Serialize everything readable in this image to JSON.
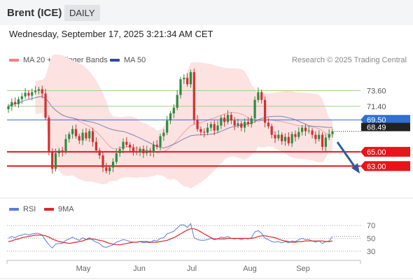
{
  "header": {
    "title": "Brent (ICE)",
    "timeframe": "DAILY"
  },
  "date_label": "Wednesday, September 17, 2025 3:21:34 AM CET",
  "legend": {
    "bollinger": "MA 20 + Bollinger Bands",
    "ma50": "MA 50",
    "credit": "Research © 2025 Trading Central",
    "rsi": "RSI",
    "rsi_ma": "9MA"
  },
  "colors": {
    "bollinger": "#f08080",
    "ma50": "#2e4e8f",
    "up_candle": "#2e8b3e",
    "down_candle": "#d32f2f",
    "resistance": "#9fd08a",
    "pivot": "#2f6fd6",
    "support": "#e8141a",
    "rsi": "#5a7fd6",
    "rsi_ma": "#e0252a"
  },
  "chart_data": [
    {
      "type": "candlestick",
      "title": "Brent (ICE)",
      "x_ticks": [
        "May",
        "Jun",
        "Jul",
        "Aug",
        "Sep"
      ],
      "ylim": [
        58.5,
        76.8
      ],
      "price_tag": "68.49",
      "levels": [
        {
          "label": "73.60",
          "value": 73.6,
          "kind": "resistance"
        },
        {
          "label": "71.40",
          "value": 71.4,
          "kind": "resistance"
        },
        {
          "label": "69.50",
          "value": 69.5,
          "kind": "pivot"
        },
        {
          "label": "65.00",
          "value": 65.0,
          "kind": "support"
        },
        {
          "label": "63.00",
          "value": 63.0,
          "kind": "support"
        }
      ],
      "closes": [
        71.4,
        72.0,
        71.7,
        72.4,
        72.8,
        73.3,
        72.9,
        73.4,
        73.6,
        73.8,
        73.2,
        69.8,
        65.0,
        62.6,
        64.8,
        65.2,
        65.0,
        66.8,
        67.5,
        68.2,
        67.2,
        66.6,
        67.7,
        66.9,
        67.9,
        66.4,
        65.2,
        64.5,
        62.8,
        62.3,
        62.8,
        63.6,
        64.8,
        65.4,
        66.4,
        66.0,
        65.6,
        65.1,
        64.9,
        65.4,
        64.8,
        65.2,
        64.9,
        66.0,
        65.7,
        67.2,
        67.7,
        69.4,
        70.4,
        71.2,
        73.0,
        75.2,
        75.4,
        74.5,
        76.2,
        69.5,
        68.2,
        67.8,
        67.7,
        68.4,
        68.9,
        68.0,
        68.7,
        69.8,
        69.2,
        70.2,
        69.4,
        68.7,
        69.0,
        68.4,
        69.2,
        68.9,
        69.7,
        72.3,
        73.4,
        72.3,
        69.1,
        68.6,
        67.4,
        66.9,
        67.4,
        66.5,
        67.1,
        66.2,
        67.5,
        67.1,
        67.8,
        68.4,
        67.9,
        68.0,
        67.4,
        66.8,
        67.4,
        65.7,
        67.0,
        67.5,
        67.9
      ],
      "rsi": {
        "ylim": [
          20,
          80
        ],
        "ticks": [
          70,
          50,
          30
        ],
        "values": [
          50,
          53,
          51,
          54,
          55,
          57,
          55,
          57,
          58,
          58,
          55,
          47,
          40,
          35,
          41,
          42,
          42,
          47,
          49,
          52,
          49,
          47,
          51,
          48,
          51,
          47,
          44,
          42,
          37,
          36,
          38,
          40,
          44,
          46,
          48,
          47,
          45,
          44,
          44,
          45,
          43,
          44,
          43,
          47,
          46,
          50,
          51,
          57,
          59,
          61,
          66,
          71,
          71,
          67,
          73,
          51,
          48,
          47,
          47,
          48,
          50,
          48,
          49,
          52,
          51,
          53,
          50,
          49,
          50,
          48,
          50,
          49,
          51,
          60,
          62,
          58,
          50,
          48,
          45,
          44,
          45,
          43,
          45,
          43,
          46,
          45,
          48,
          50,
          48,
          48,
          46,
          44,
          46,
          42,
          45,
          46,
          53
        ],
        "ma9": [
          45,
          46,
          48,
          49,
          51,
          52,
          53,
          54,
          55,
          55,
          55,
          54,
          52,
          49,
          47,
          45,
          44,
          43,
          42,
          43,
          44,
          45,
          46,
          48,
          49,
          49,
          48,
          47,
          46,
          44,
          42,
          41,
          40,
          40,
          41,
          42,
          43,
          44,
          44,
          45,
          45,
          45,
          44,
          44,
          44,
          45,
          46,
          47,
          49,
          51,
          54,
          57,
          60,
          63,
          65,
          65,
          63,
          60,
          57,
          54,
          51,
          49,
          49,
          49,
          49,
          50,
          50,
          50,
          50,
          50,
          50,
          50,
          50,
          51,
          53,
          54,
          54,
          53,
          52,
          51,
          49,
          47,
          46,
          45,
          44,
          44,
          45,
          45,
          46,
          46,
          46,
          46,
          46,
          46,
          45,
          45,
          46
        ]
      }
    }
  ]
}
